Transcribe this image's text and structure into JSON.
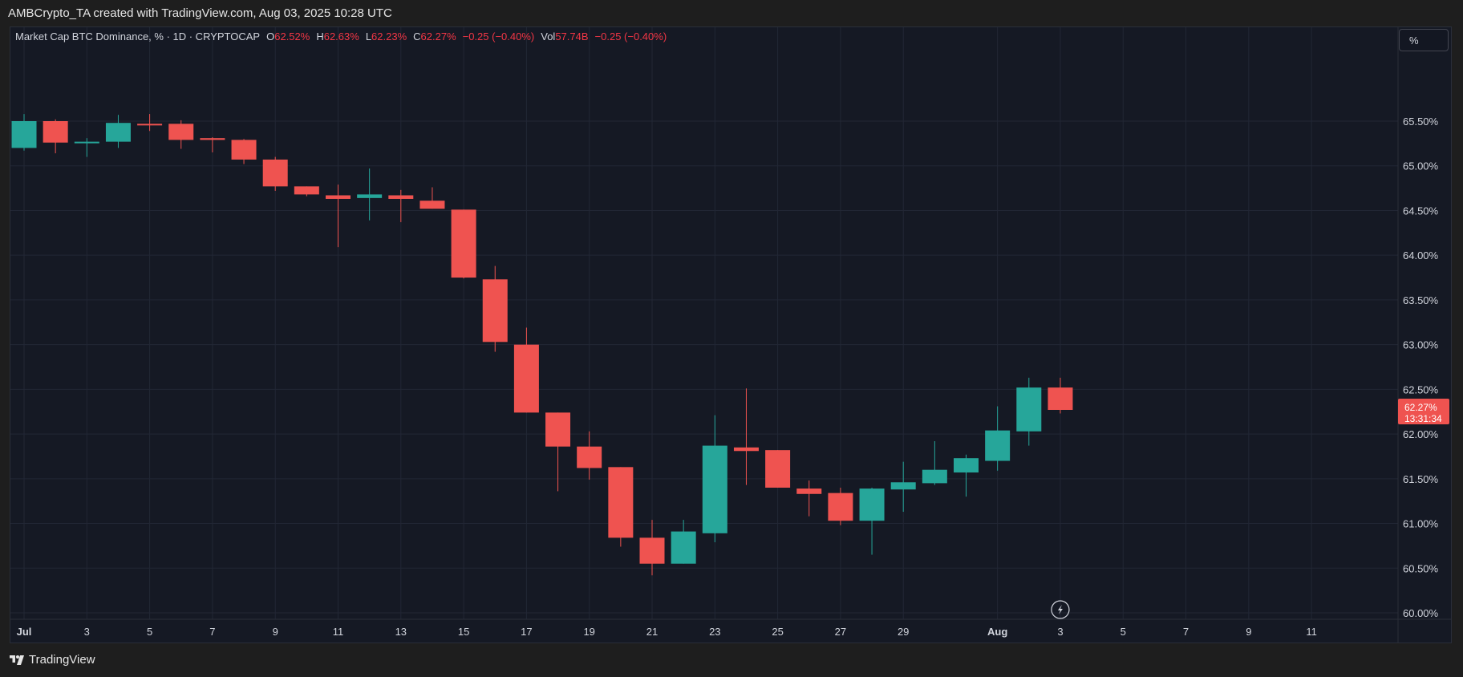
{
  "caption": "AMBCrypto_TA created with TradingView.com, Aug 03, 2025 10:28 UTC",
  "legend": {
    "symbol": "Market Cap BTC Dominance, % · 1D · CRYPTOCAP",
    "o_label": "O",
    "o_value": "62.52%",
    "h_label": "H",
    "h_value": "62.63%",
    "l_label": "L",
    "l_value": "62.23%",
    "c_label": "C",
    "c_value": "62.27%",
    "change": "−0.25 (−0.40%)",
    "vol_label": "Vol",
    "vol_value": "57.74B",
    "vol_change": "−0.25 (−0.40%)"
  },
  "scale_button": "%",
  "footer_logo": "TradingView",
  "colors": {
    "up": "#26a69a",
    "down": "#ef5350",
    "background": "#151924",
    "grid": "#222735",
    "axis_text": "#d1d4dc",
    "price_tag": "#ef5350"
  },
  "chart_data": {
    "type": "candlestick",
    "title": "Market Cap BTC Dominance, % · 1D · CRYPTOCAP",
    "ylim": [
      60.0,
      65.9
    ],
    "y_ticks": [
      60.0,
      60.5,
      61.0,
      61.5,
      62.0,
      62.5,
      63.0,
      63.5,
      64.0,
      64.5,
      65.0,
      65.5
    ],
    "y_tick_labels": [
      "60.00%",
      "60.50%",
      "61.00%",
      "61.50%",
      "62.00%",
      "62.50%",
      "63.00%",
      "63.50%",
      "64.00%",
      "64.50%",
      "65.00%",
      "65.50%"
    ],
    "x_range": [
      "2025-07-01",
      "2025-08-11"
    ],
    "x_tick_labels": [
      "Jul",
      "3",
      "5",
      "7",
      "9",
      "11",
      "13",
      "15",
      "17",
      "19",
      "21",
      "23",
      "25",
      "27",
      "29",
      "Aug",
      "3",
      "5",
      "7",
      "9",
      "11"
    ],
    "x_tick_dates": [
      "2025-07-01",
      "2025-07-03",
      "2025-07-05",
      "2025-07-07",
      "2025-07-09",
      "2025-07-11",
      "2025-07-13",
      "2025-07-15",
      "2025-07-17",
      "2025-07-19",
      "2025-07-21",
      "2025-07-23",
      "2025-07-25",
      "2025-07-27",
      "2025-07-29",
      "2025-08-01",
      "2025-08-03",
      "2025-08-05",
      "2025-08-07",
      "2025-08-09",
      "2025-08-11"
    ],
    "candles": [
      {
        "date": "2025-07-01",
        "open": 65.2,
        "high": 65.58,
        "low": 65.17,
        "close": 65.5
      },
      {
        "date": "2025-07-02",
        "open": 65.5,
        "high": 65.52,
        "low": 65.14,
        "close": 65.26
      },
      {
        "date": "2025-07-03",
        "open": 65.26,
        "high": 65.31,
        "low": 65.1,
        "close": 65.27
      },
      {
        "date": "2025-07-04",
        "open": 65.27,
        "high": 65.57,
        "low": 65.2,
        "close": 65.48
      },
      {
        "date": "2025-07-05",
        "open": 65.47,
        "high": 65.58,
        "low": 65.39,
        "close": 65.46
      },
      {
        "date": "2025-07-06",
        "open": 65.47,
        "high": 65.51,
        "low": 65.19,
        "close": 65.29
      },
      {
        "date": "2025-07-07",
        "open": 65.31,
        "high": 65.32,
        "low": 65.15,
        "close": 65.29
      },
      {
        "date": "2025-07-08",
        "open": 65.29,
        "high": 65.3,
        "low": 65.02,
        "close": 65.07
      },
      {
        "date": "2025-07-09",
        "open": 65.07,
        "high": 65.1,
        "low": 64.72,
        "close": 64.77
      },
      {
        "date": "2025-07-10",
        "open": 64.77,
        "high": 64.77,
        "low": 64.66,
        "close": 64.68
      },
      {
        "date": "2025-07-11",
        "open": 64.67,
        "high": 64.79,
        "low": 64.09,
        "close": 64.63
      },
      {
        "date": "2025-07-12",
        "open": 64.64,
        "high": 64.97,
        "low": 64.39,
        "close": 64.68
      },
      {
        "date": "2025-07-13",
        "open": 64.67,
        "high": 64.73,
        "low": 64.37,
        "close": 64.63
      },
      {
        "date": "2025-07-14",
        "open": 64.61,
        "high": 64.76,
        "low": 64.52,
        "close": 64.52
      },
      {
        "date": "2025-07-15",
        "open": 64.51,
        "high": 64.51,
        "low": 63.74,
        "close": 63.75
      },
      {
        "date": "2025-07-16",
        "open": 63.73,
        "high": 63.88,
        "low": 62.92,
        "close": 63.03
      },
      {
        "date": "2025-07-17",
        "open": 63.0,
        "high": 63.19,
        "low": 62.24,
        "close": 62.24
      },
      {
        "date": "2025-07-18",
        "open": 62.24,
        "high": 62.24,
        "low": 61.36,
        "close": 61.86
      },
      {
        "date": "2025-07-19",
        "open": 61.86,
        "high": 62.03,
        "low": 61.49,
        "close": 61.62
      },
      {
        "date": "2025-07-20",
        "open": 61.63,
        "high": 61.63,
        "low": 60.74,
        "close": 60.84
      },
      {
        "date": "2025-07-21",
        "open": 60.84,
        "high": 61.04,
        "low": 60.42,
        "close": 60.55
      },
      {
        "date": "2025-07-22",
        "open": 60.55,
        "high": 61.04,
        "low": 60.55,
        "close": 60.91
      },
      {
        "date": "2025-07-23",
        "open": 60.89,
        "high": 62.21,
        "low": 60.79,
        "close": 61.87
      },
      {
        "date": "2025-07-24",
        "open": 61.85,
        "high": 62.51,
        "low": 61.43,
        "close": 61.81
      },
      {
        "date": "2025-07-25",
        "open": 61.82,
        "high": 61.82,
        "low": 61.4,
        "close": 61.4
      },
      {
        "date": "2025-07-26",
        "open": 61.39,
        "high": 61.48,
        "low": 61.08,
        "close": 61.33
      },
      {
        "date": "2025-07-27",
        "open": 61.34,
        "high": 61.4,
        "low": 60.98,
        "close": 61.03
      },
      {
        "date": "2025-07-28",
        "open": 61.03,
        "high": 61.4,
        "low": 60.65,
        "close": 61.39
      },
      {
        "date": "2025-07-29",
        "open": 61.38,
        "high": 61.69,
        "low": 61.13,
        "close": 61.46
      },
      {
        "date": "2025-07-30",
        "open": 61.45,
        "high": 61.92,
        "low": 61.43,
        "close": 61.6
      },
      {
        "date": "2025-07-31",
        "open": 61.57,
        "high": 61.77,
        "low": 61.3,
        "close": 61.73
      },
      {
        "date": "2025-08-01",
        "open": 61.7,
        "high": 62.31,
        "low": 61.59,
        "close": 62.04
      },
      {
        "date": "2025-08-02",
        "open": 62.03,
        "high": 62.63,
        "low": 61.87,
        "close": 62.52
      },
      {
        "date": "2025-08-03",
        "open": 62.52,
        "high": 62.63,
        "low": 62.23,
        "close": 62.27
      }
    ],
    "last_price": 62.27,
    "last_price_label": "62.27%",
    "countdown": "13:31:34",
    "grid": true,
    "legend": "top-left"
  }
}
